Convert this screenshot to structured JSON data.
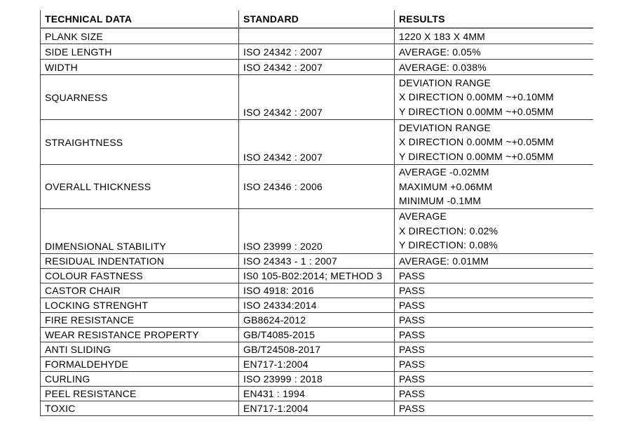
{
  "document": {
    "background": "#ffffff",
    "text_color": "#000000",
    "border_color": "#3c3c3c",
    "header_rule_color": "#6e6e6e"
  },
  "table": {
    "headers": {
      "technical_data": "TECHNICAL DATA",
      "standard": "STANDARD",
      "results": "RESULTS"
    },
    "rows": [
      {
        "name": "PLANK SIZE",
        "standard": "",
        "results": [
          "1220 X 183 X 4MM"
        ]
      },
      {
        "name": "SIDE LENGTH",
        "standard": "ISO 24342 : 2007",
        "results": [
          "AVERAGE: 0.05%"
        ]
      },
      {
        "name": "WIDTH",
        "standard": "ISO 24342 : 2007",
        "results": [
          "AVERAGE: 0.038%"
        ]
      },
      {
        "name": "SQUARNESS",
        "standard": "ISO 24342 : 2007",
        "results": [
          "DEVIATION RANGE",
          "X DIRECTION 0.00MM ~+0.10MM",
          "Y DIRECTION 0.00MM ~+0.05MM"
        ]
      },
      {
        "name": "STRAIGHTNESS",
        "standard": "ISO 24342 : 2007",
        "results": [
          "DEVIATION RANGE",
          "X DIRECTION 0.00MM ~+0.05MM",
          "Y DIRECTION 0.00MM ~+0.05MM"
        ]
      },
      {
        "name": "OVERALL THICKNESS",
        "standard": "ISO 24346 : 2006",
        "results": [
          "AVERAGE -0.02MM",
          "MAXIMUM +0.06MM",
          "MINIMUM -0.1MM"
        ]
      },
      {
        "name": "DIMENSIONAL STABILITY",
        "standard": "ISO 23999 : 2020",
        "results": [
          "AVERAGE",
          "X DIRECTION: 0.02%",
          "Y DIRECTION: 0.08%"
        ]
      },
      {
        "name": "RESIDUAL INDENTATION",
        "standard": "ISO 24343 - 1 : 2007",
        "results": [
          "AVERAGE: 0.01MM"
        ]
      },
      {
        "name": "COLOUR FASTNESS",
        "standard": "IS0 105-B02:2014; METHOD 3",
        "results": [
          "PASS"
        ]
      },
      {
        "name": "CASTOR CHAIR",
        "standard": "ISO 4918: 2016",
        "results": [
          "PASS"
        ]
      },
      {
        "name": "LOCKING STRENGHT",
        "standard": "ISO 24334:2014",
        "results": [
          "PASS"
        ]
      },
      {
        "name": "FIRE RESISTANCE",
        "standard": "GB8624-2012",
        "results": [
          "PASS"
        ]
      },
      {
        "name": "WEAR RESISTANCE PROPERTY",
        "standard": "GB/T4085-2015",
        "results": [
          "PASS"
        ]
      },
      {
        "name": "ANTI SLIDING",
        "standard": "GB/T24508-2017",
        "results": [
          "PASS"
        ]
      },
      {
        "name": "FORMALDEHYDE",
        "standard": "EN717-1:2004",
        "results": [
          "PASS"
        ]
      },
      {
        "name": "CURLING",
        "standard": "ISO 23999 : 2018",
        "results": [
          "PASS"
        ]
      },
      {
        "name": "PEEL RESISTANCE",
        "standard": "EN431 : 1994",
        "results": [
          "PASS"
        ]
      },
      {
        "name": "TOXIC",
        "standard": "EN717-1:2004",
        "results": [
          "PASS"
        ]
      }
    ]
  }
}
